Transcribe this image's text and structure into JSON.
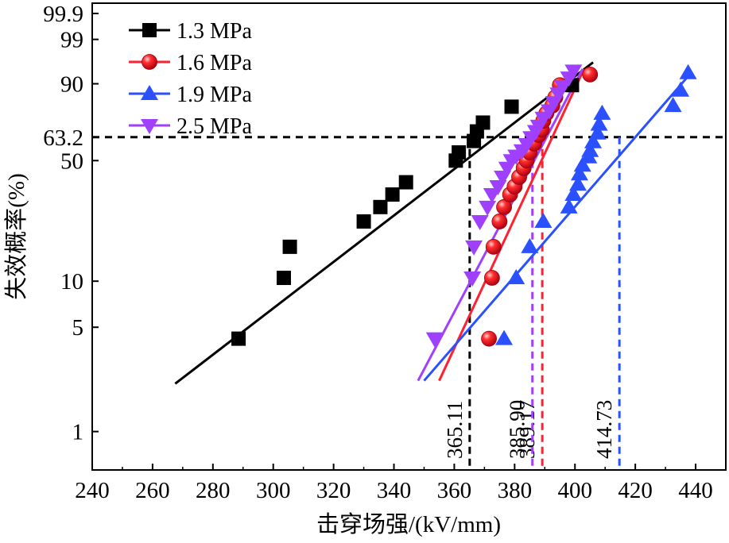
{
  "chart_data": {
    "type": "scatter",
    "title": "",
    "xlabel": "击穿场强/(kV/mm)",
    "ylabel": "失效概率(%)",
    "xlim": [
      240,
      450
    ],
    "x_ticks": [
      240,
      260,
      280,
      300,
      320,
      340,
      360,
      380,
      400,
      420,
      440
    ],
    "x_tick_labels": [
      "240",
      "260",
      "280",
      "300",
      "320",
      "340",
      "360",
      "380",
      "400",
      "420",
      "440"
    ],
    "y_scale": "weibull",
    "ylim_percent": [
      0.55,
      99.97
    ],
    "y_ticks": [
      1,
      5,
      10,
      50,
      63.2,
      90,
      99,
      99.9
    ],
    "y_tick_labels": [
      "1",
      "5",
      "10",
      "50",
      "63.2",
      "90",
      "99",
      "99.9"
    ],
    "legend_position": "top-left",
    "reference_level": {
      "y": 63.2,
      "label": "63.2"
    },
    "series": [
      {
        "name": "1.3 MPa",
        "color": "#000000",
        "marker": "square",
        "scale_parameter": 365.11,
        "scale_label": "365.11",
        "points": [
          [
            288.5,
            4.2
          ],
          [
            303.5,
            10.5
          ],
          [
            305.5,
            16.5
          ],
          [
            330,
            23.5
          ],
          [
            335.5,
            28.5
          ],
          [
            339.5,
            33.5
          ],
          [
            344,
            39
          ],
          [
            360.5,
            50
          ],
          [
            361.5,
            54.5
          ],
          [
            366.5,
            61
          ],
          [
            367.5,
            66.5
          ],
          [
            369.5,
            71.5
          ],
          [
            379,
            80
          ],
          [
            399,
            89.5
          ]
        ],
        "fit_line": [
          [
            267.5,
            2.1
          ],
          [
            406,
            96
          ]
        ]
      },
      {
        "name": "1.6 MPa",
        "color": "#ff2030",
        "marker": "sphere",
        "scale_parameter": 389.17,
        "scale_label": "389.17",
        "points": [
          [
            371.5,
            4.2
          ],
          [
            372.5,
            10.5
          ],
          [
            373,
            16.5
          ],
          [
            375,
            23.5
          ],
          [
            376.5,
            28.5
          ],
          [
            378.5,
            33.5
          ],
          [
            380,
            37
          ],
          [
            381.5,
            41.5
          ],
          [
            383,
            46
          ],
          [
            384,
            50
          ],
          [
            385,
            54.5
          ],
          [
            386.5,
            59.5
          ],
          [
            388,
            64.5
          ],
          [
            389,
            67.5
          ],
          [
            389.5,
            72.5
          ],
          [
            390.5,
            76.5
          ],
          [
            392.5,
            80.5
          ],
          [
            393.5,
            84.5
          ],
          [
            395,
            89.5
          ],
          [
            405,
            93
          ]
        ],
        "fit_line": [
          [
            355,
            2.2
          ],
          [
            403,
            94.5
          ]
        ]
      },
      {
        "name": "1.9 MPa",
        "color": "#2a50ff",
        "marker": "triangle-up",
        "scale_parameter": 414.73,
        "scale_label": "414.73",
        "points": [
          [
            376.5,
            4.2
          ],
          [
            380.5,
            10.5
          ],
          [
            385,
            16.5
          ],
          [
            389.5,
            23.5
          ],
          [
            398,
            28.5
          ],
          [
            399.5,
            33.5
          ],
          [
            401,
            38
          ],
          [
            401.5,
            43
          ],
          [
            402.5,
            47.5
          ],
          [
            404.5,
            52
          ],
          [
            405,
            55.5
          ],
          [
            406,
            60.5
          ],
          [
            407.5,
            65.5
          ],
          [
            408,
            70.5
          ],
          [
            409,
            76.5
          ],
          [
            432.5,
            80.5
          ],
          [
            435,
            87.5
          ],
          [
            437.5,
            93.5
          ]
        ],
        "fit_line": [
          [
            350,
            2.2
          ],
          [
            438.5,
            93.5
          ]
        ]
      },
      {
        "name": "2.5 MPa",
        "color": "#a040ff",
        "marker": "triangle-down",
        "scale_parameter": 385.9,
        "scale_label": "385.90",
        "points": [
          [
            353.5,
            4.2
          ],
          [
            366,
            10.5
          ],
          [
            366.5,
            16.5
          ],
          [
            368.5,
            23.5
          ],
          [
            371,
            28.5
          ],
          [
            372.5,
            33.5
          ],
          [
            374.5,
            37
          ],
          [
            376,
            41.5
          ],
          [
            377.5,
            46
          ],
          [
            379,
            50
          ],
          [
            380.5,
            52.5
          ],
          [
            382.5,
            55.5
          ],
          [
            384,
            59
          ],
          [
            385.5,
            63
          ],
          [
            387,
            66.5
          ],
          [
            388,
            69.5
          ],
          [
            389.5,
            74
          ],
          [
            391.5,
            78
          ],
          [
            393,
            82
          ],
          [
            394.5,
            86
          ],
          [
            396,
            89
          ],
          [
            398,
            92
          ],
          [
            399.5,
            94
          ]
        ],
        "fit_line": [
          [
            348,
            2.2
          ],
          [
            402.5,
            94.5
          ]
        ]
      }
    ]
  }
}
